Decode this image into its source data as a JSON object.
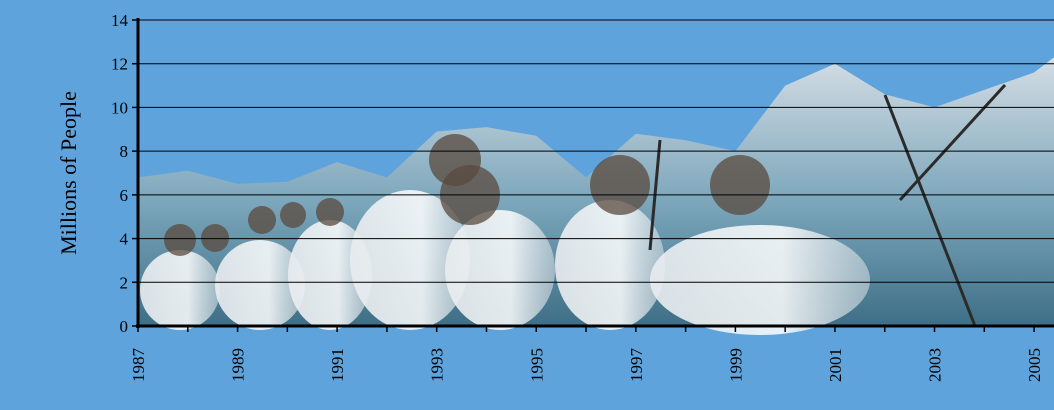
{
  "chart_data": {
    "type": "area",
    "title": "",
    "xlabel": "",
    "ylabel": "Millions of People",
    "ylim": [
      0,
      14
    ],
    "xlim": [
      1987,
      2005.4
    ],
    "grid": true,
    "legend": "none",
    "yticks": [
      0,
      2,
      4,
      6,
      8,
      10,
      12,
      14
    ],
    "xticks": [
      "1987",
      "1989",
      "1991",
      "1993",
      "1995",
      "1997",
      "1999",
      "2001",
      "2003",
      "2005"
    ],
    "x": [
      1987,
      1988,
      1989,
      1990,
      1991,
      1992,
      1993,
      1994,
      1995,
      1996,
      1997,
      1998,
      1999,
      2000,
      2001,
      2002,
      2003,
      2004,
      2005,
      2005.4
    ],
    "values": [
      6.8,
      7.1,
      6.5,
      6.6,
      7.5,
      6.8,
      8.9,
      9.1,
      8.7,
      6.8,
      8.8,
      8.5,
      8.0,
      11.0,
      12.0,
      10.6,
      10.0,
      10.8,
      11.6,
      12.3
    ],
    "colors": {
      "background": "#5fa3dc",
      "area_top": "#d4dde4",
      "area_mid": "#7aa5ba",
      "area_bottom": "#3e6f86",
      "grid": "#000000"
    }
  }
}
